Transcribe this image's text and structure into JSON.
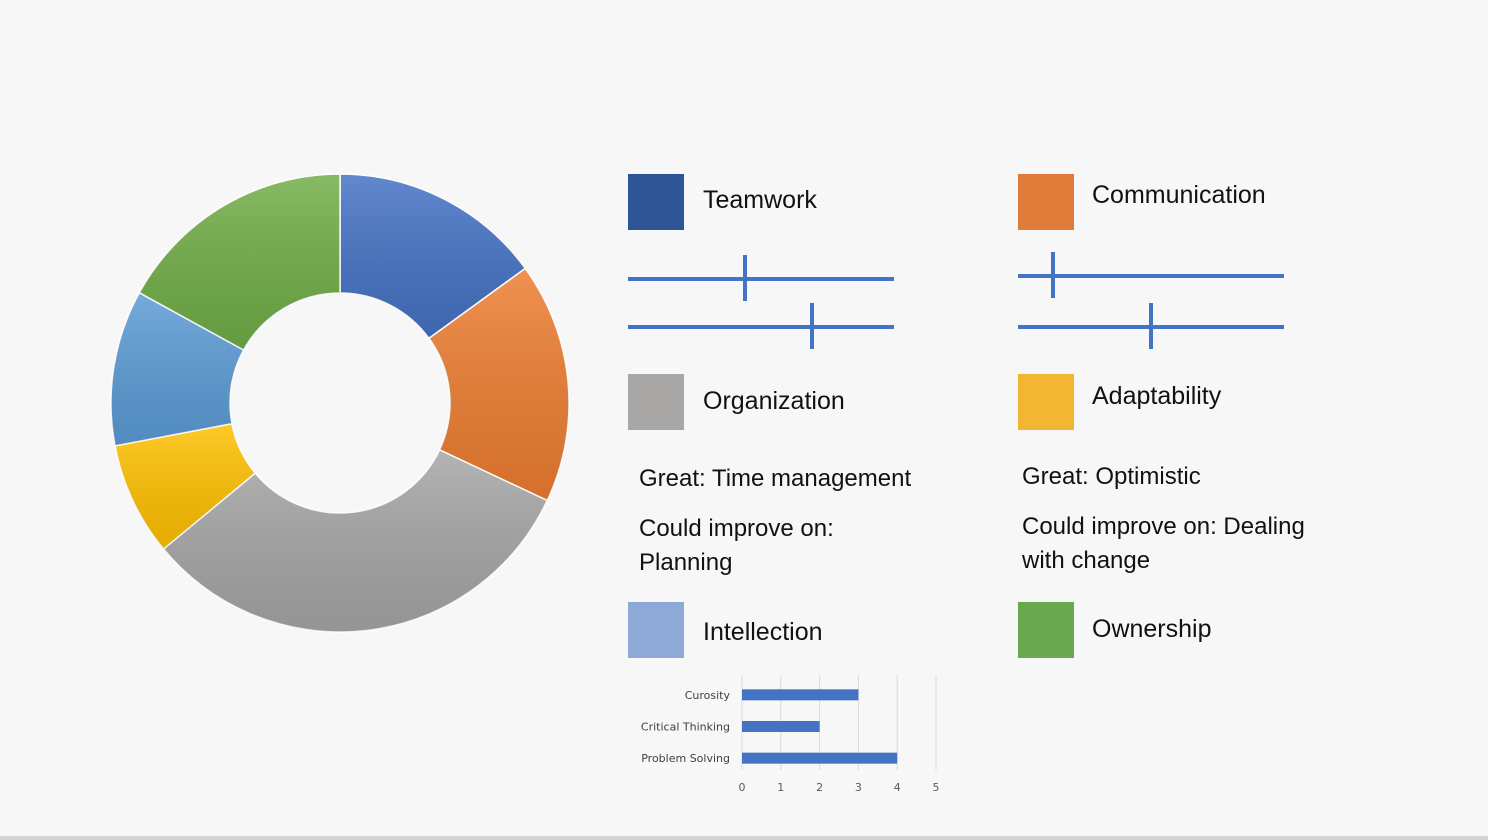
{
  "colors": {
    "teamwork": "#2f5597",
    "communication": "#e07b39",
    "organization": "#a6a6a6",
    "adaptability": "#f2b632",
    "intellection": "#8ea9d8",
    "ownership": "#6aa84f",
    "bar": "#4472c4"
  },
  "chart_data": [
    {
      "type": "pie",
      "style": "donut",
      "slices": [
        {
          "value": 15,
          "color": "#4472c4"
        },
        {
          "value": 17,
          "color": "#ed7d31"
        },
        {
          "value": 32,
          "color": "#a5a5a5"
        },
        {
          "value": 8,
          "color": "#ffc000"
        },
        {
          "value": 11,
          "color": "#5b9bd5"
        },
        {
          "value": 17,
          "color": "#70ad47"
        }
      ]
    },
    {
      "type": "bar",
      "orientation": "horizontal",
      "categories": [
        "Curosity",
        "Critical Thinking",
        "Problem Solving"
      ],
      "values": [
        3,
        2,
        4
      ],
      "xlim": [
        0,
        5
      ],
      "xticks": [
        0,
        1,
        2,
        3,
        4,
        5
      ],
      "grid": true
    }
  ],
  "categories": {
    "teamwork": {
      "label": "Teamwork",
      "sliders": [
        0.44,
        0.69
      ]
    },
    "communication": {
      "label": "Communication",
      "sliders": [
        0.13,
        0.5
      ]
    },
    "organization": {
      "label": "Organization",
      "great": "Great: Time management",
      "improve": "Could improve on: Planning"
    },
    "adaptability": {
      "label": "Adaptability",
      "great": "Great: Optimistic",
      "improve": "Could improve on: Dealing with change"
    },
    "intellection": {
      "label": "Intellection"
    },
    "ownership": {
      "label": "Ownership"
    }
  }
}
